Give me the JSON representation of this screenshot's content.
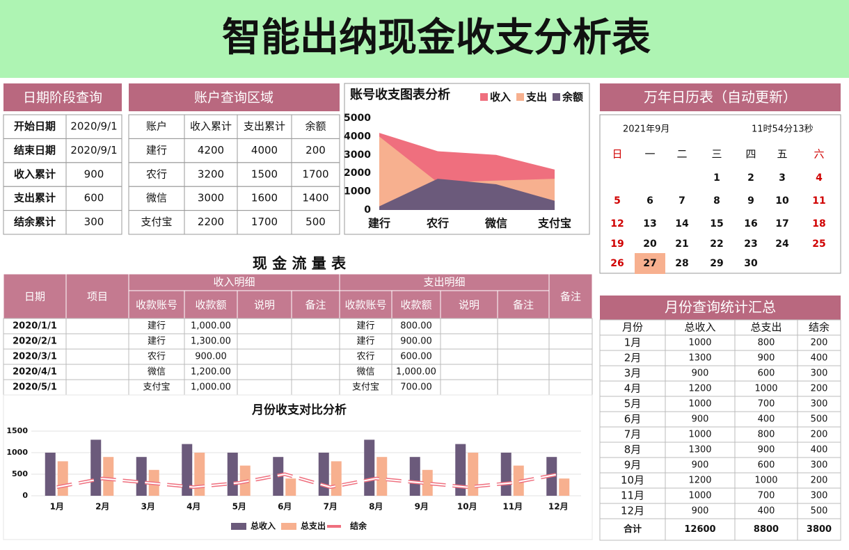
{
  "title": "智能出纳现金收支分析表",
  "date_query": {
    "title": "日期阶段查询",
    "rows": [
      [
        "开始日期",
        "2020/9/1"
      ],
      [
        "结束日期",
        "2020/9/1"
      ],
      [
        "收入累计",
        900
      ],
      [
        "支出累计",
        600
      ],
      [
        "结余累计",
        300
      ]
    ]
  },
  "account_query": {
    "title": "账户查询区域",
    "header": [
      "账户",
      "收入累计",
      "支出累计",
      "余额"
    ],
    "rows": [
      [
        "建行",
        4200,
        4000,
        200
      ],
      [
        "农行",
        3200,
        1500,
        1700
      ],
      [
        "微信",
        3000,
        1600,
        1400
      ],
      [
        "支付宝",
        2200,
        1700,
        500
      ]
    ]
  },
  "calendar": {
    "title": "万年日历表（自动更新）",
    "month": "2021年9月",
    "time": "11时54分13秒",
    "weekdays": [
      "日",
      "一",
      "二",
      "三",
      "四",
      "五",
      "六"
    ],
    "weeks": [
      [
        null,
        null,
        null,
        1,
        2,
        3,
        4
      ],
      [
        5,
        6,
        7,
        8,
        9,
        10,
        11
      ],
      [
        12,
        13,
        14,
        15,
        16,
        17,
        18
      ],
      [
        19,
        20,
        21,
        22,
        23,
        24,
        25
      ],
      [
        26,
        27,
        28,
        29,
        30,
        null,
        null
      ]
    ],
    "today": 27
  },
  "cash_flow": {
    "title": "现 金 流 量 表",
    "headers": {
      "date": "日期",
      "item": "项目",
      "income": "收入明细",
      "expense": "支出明细",
      "note": "备注"
    },
    "sub_headers": [
      "收款账号",
      "收款额",
      "说明",
      "备注"
    ],
    "rows": [
      {
        "date": "2020/1/1",
        "income_account": "建行",
        "income_amount": "1,000.00",
        "expense_account": "建行",
        "expense_amount": "800.00"
      },
      {
        "date": "2020/2/1",
        "income_account": "建行",
        "income_amount": "1,300.00",
        "expense_account": "建行",
        "expense_amount": "900.00"
      },
      {
        "date": "2020/3/1",
        "income_account": "农行",
        "income_amount": "900.00",
        "expense_account": "农行",
        "expense_amount": "600.00"
      },
      {
        "date": "2020/4/1",
        "income_account": "微信",
        "income_amount": "1,200.00",
        "expense_account": "微信",
        "expense_amount": "1,000.00"
      },
      {
        "date": "2020/5/1",
        "income_account": "支付宝",
        "income_amount": "1,000.00",
        "expense_account": "支付宝",
        "expense_amount": "700.00"
      }
    ]
  },
  "monthly_summary": {
    "title": "月份查询统计汇总",
    "header": [
      "月份",
      "总收入",
      "总支出",
      "结余"
    ],
    "rows": [
      [
        "1月",
        1000,
        800,
        200
      ],
      [
        "2月",
        1300,
        900,
        400
      ],
      [
        "3月",
        900,
        600,
        300
      ],
      [
        "4月",
        1200,
        1000,
        200
      ],
      [
        "5月",
        1000,
        700,
        300
      ],
      [
        "6月",
        900,
        400,
        500
      ],
      [
        "7月",
        1000,
        800,
        200
      ],
      [
        "8月",
        1300,
        900,
        400
      ],
      [
        "9月",
        900,
        600,
        300
      ],
      [
        "10月",
        1200,
        1000,
        200
      ],
      [
        "11月",
        1000,
        700,
        300
      ],
      [
        "12月",
        900,
        400,
        500
      ]
    ],
    "total": [
      "合计",
      12600,
      8800,
      3800
    ]
  },
  "chart_data": [
    {
      "type": "area",
      "title": "账号收支图表分析",
      "categories": [
        "建行",
        "农行",
        "微信",
        "支付宝"
      ],
      "series": [
        {
          "name": "收入",
          "color": "#ef6f7e",
          "values": [
            4200,
            3200,
            3000,
            2200
          ]
        },
        {
          "name": "支出",
          "color": "#f7b08f",
          "values": [
            4000,
            1500,
            1600,
            1700
          ]
        },
        {
          "name": "余额",
          "color": "#6b5a7b",
          "values": [
            200,
            1700,
            1400,
            500
          ]
        }
      ],
      "ylim": [
        0,
        5000
      ],
      "yticks": [
        0,
        1000,
        2000,
        3000,
        4000,
        5000
      ]
    },
    {
      "type": "bar_line",
      "title": "月份收支对比分析",
      "categories": [
        "1月",
        "2月",
        "3月",
        "4月",
        "5月",
        "6月",
        "7月",
        "8月",
        "9月",
        "10月",
        "11月",
        "12月"
      ],
      "series": [
        {
          "name": "总收入",
          "color": "#6b5a7b",
          "values": [
            1000,
            1300,
            900,
            1200,
            1000,
            900,
            1000,
            1300,
            900,
            1200,
            1000,
            900
          ]
        },
        {
          "name": "总支出",
          "color": "#f7b08f",
          "values": [
            800,
            900,
            600,
            1000,
            700,
            400,
            800,
            900,
            600,
            1000,
            700,
            400
          ]
        },
        {
          "name": "结余",
          "color": "#ef6f7e",
          "values": [
            200,
            400,
            300,
            200,
            300,
            500,
            200,
            400,
            300,
            200,
            300,
            500
          ]
        }
      ],
      "ylim": [
        0,
        1500
      ],
      "yticks": [
        0,
        500,
        1000,
        1500
      ],
      "grid": true
    }
  ]
}
